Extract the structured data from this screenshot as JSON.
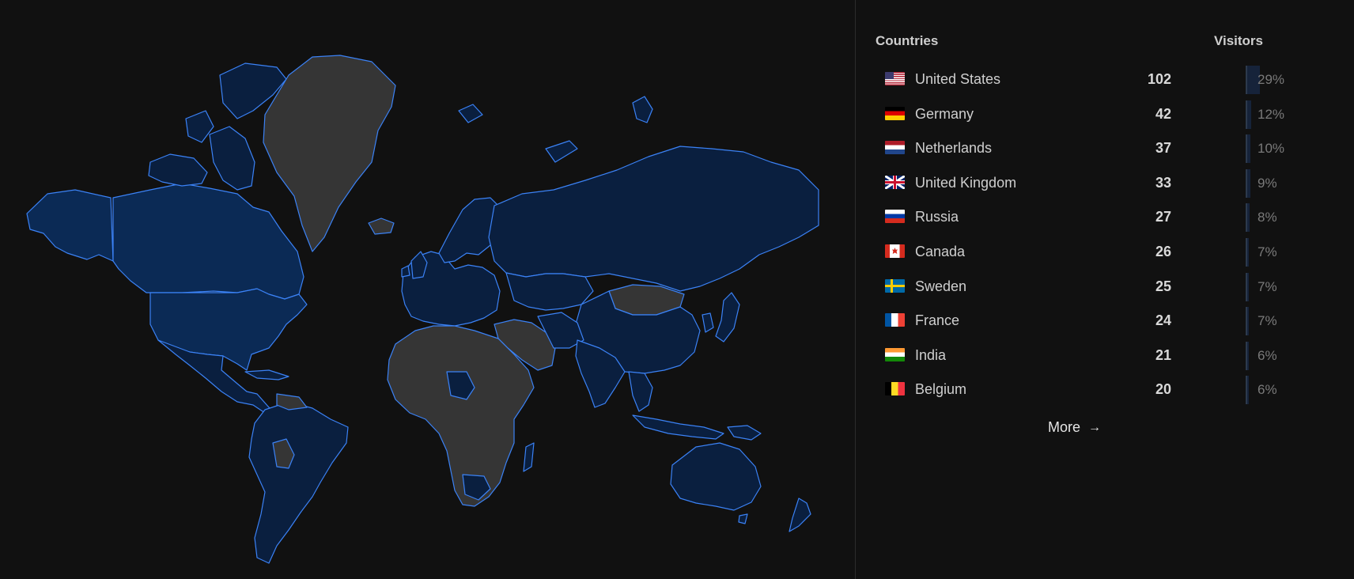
{
  "list": {
    "header_countries": "Countries",
    "header_visitors": "Visitors",
    "more_label": "More",
    "more_icon": "arrow-right-icon",
    "rows": [
      {
        "country": "United States",
        "visitors": "102",
        "percent": "29%",
        "share": 0.29,
        "flag": "us"
      },
      {
        "country": "Germany",
        "visitors": "42",
        "percent": "12%",
        "share": 0.12,
        "flag": "de"
      },
      {
        "country": "Netherlands",
        "visitors": "37",
        "percent": "10%",
        "share": 0.1,
        "flag": "nl"
      },
      {
        "country": "United Kingdom",
        "visitors": "33",
        "percent": "9%",
        "share": 0.09,
        "flag": "gb"
      },
      {
        "country": "Russia",
        "visitors": "27",
        "percent": "8%",
        "share": 0.08,
        "flag": "ru"
      },
      {
        "country": "Canada",
        "visitors": "26",
        "percent": "7%",
        "share": 0.07,
        "flag": "ca"
      },
      {
        "country": "Sweden",
        "visitors": "25",
        "percent": "7%",
        "share": 0.07,
        "flag": "se"
      },
      {
        "country": "France",
        "visitors": "24",
        "percent": "7%",
        "share": 0.07,
        "flag": "fr"
      },
      {
        "country": "India",
        "visitors": "21",
        "percent": "6%",
        "share": 0.06,
        "flag": "in"
      },
      {
        "country": "Belgium",
        "visitors": "20",
        "percent": "6%",
        "share": 0.06,
        "flag": "be"
      }
    ]
  },
  "map": {
    "colors": {
      "visited_strong": "#0b2a55",
      "visited": "#0a1f3f",
      "unvisited": "#353535",
      "border": "#3b82f6",
      "background": "#111111"
    }
  }
}
